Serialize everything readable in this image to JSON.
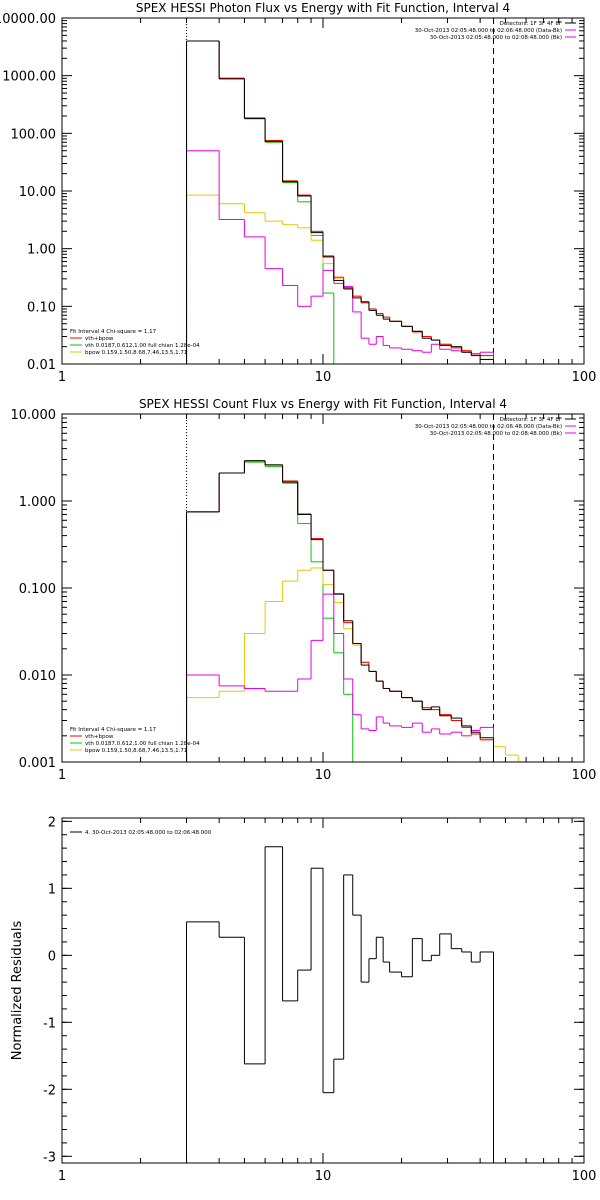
{
  "colors": {
    "data": "#000000",
    "total_model": "#ff0000",
    "vth": "#00c800",
    "bpow": "#e6c800",
    "background": "#e600e6",
    "axis": "#000000"
  },
  "chart_data": [
    {
      "id": "photon",
      "type": "line",
      "step": true,
      "title": "SPEX HESSI Photon Flux vs Energy with Fit Function, Interval 4",
      "xlabel": "",
      "ylabel": "",
      "xscale": "log",
      "yscale": "log",
      "xlim": [
        1,
        100
      ],
      "ylim": [
        0.01,
        10000
      ],
      "x_ticks": [
        1,
        10,
        100
      ],
      "x_tick_labels": [
        "1",
        "10",
        "100"
      ],
      "y_ticks": [
        0.01,
        0.1,
        1,
        10,
        100,
        1000,
        10000
      ],
      "y_tick_labels": [
        "0.01",
        "0.10",
        "1.00",
        "10.00",
        "100.00",
        "1000.00",
        "10000.00"
      ],
      "grid": false,
      "legend_right": {
        "placement": "top-right",
        "lines": [
          "Detectors: 1F 3F 4F 8F",
          "30-Oct-2013 02:05:48.000 to 02:06:48.000 (Data-Bk)",
          "30-Oct-2013 02:05:48.000 to 02:08:48.000 (Bk)"
        ],
        "series": [
          "data",
          "background",
          "background"
        ]
      },
      "legend_left": {
        "placement": "bottom-left",
        "lines": [
          "Fit Interval 4   Chi-square = 1.17",
          "vth+bpow",
          "vth 0.0187,0.612,1.00  full chian 1.28e-04",
          "bpow 0.159,1.50,8.68,7.46,13.5,1.71"
        ],
        "series": [
          "",
          "total_model",
          "vth",
          "bpow"
        ]
      },
      "vlines": [
        {
          "x": 3.0,
          "style": "dotted"
        },
        {
          "x": 45.0,
          "style": "dashed"
        }
      ],
      "bin_edges": [
        3.0,
        4.0,
        5.0,
        6.0,
        7.0,
        8.0,
        9.0,
        10.0,
        11.0,
        12.0,
        13.0,
        14.0,
        15.0,
        16.0,
        17.0,
        18.0,
        20.0,
        22.0,
        24.0,
        26.0,
        28.0,
        31.0,
        34.0,
        37.0,
        40.0,
        45.0
      ],
      "series": [
        {
          "key": "vth",
          "values": [
            4000,
            900,
            180,
            70,
            14,
            6.5,
            1.7,
            0.17,
            0.009,
            0,
            0,
            0,
            0,
            0,
            0,
            0,
            0,
            0,
            0,
            0,
            0,
            0,
            0,
            0,
            0
          ]
        },
        {
          "key": "bpow",
          "values": [
            8.5,
            6.0,
            4.2,
            3.0,
            2.6,
            2.3,
            1.4,
            0.55,
            0.3,
            0.21,
            0.15,
            0.115,
            0.09,
            0.075,
            0.065,
            0.055,
            0.045,
            0.036,
            0.03,
            0.026,
            0.022,
            0.019,
            0.017,
            0.015,
            0.014
          ]
        },
        {
          "key": "background",
          "values": [
            50,
            3.2,
            1.6,
            0.45,
            0.23,
            0.1,
            0.15,
            0.42,
            0.25,
            0.22,
            0.08,
            0.028,
            0.022,
            0.03,
            0.021,
            0.019,
            0.018,
            0.017,
            0.016,
            0.022,
            0.018,
            0.017,
            0.016,
            0.015,
            0.016
          ]
        },
        {
          "key": "total_model",
          "values": [
            4000,
            900,
            185,
            75,
            15,
            8.5,
            2.0,
            0.75,
            0.32,
            0.21,
            0.15,
            0.115,
            0.09,
            0.075,
            0.065,
            0.055,
            0.045,
            0.036,
            0.03,
            0.026,
            0.022,
            0.019,
            0.017,
            0.015,
            0.014
          ]
        },
        {
          "key": "data",
          "values": [
            4000,
            880,
            180,
            72,
            14.5,
            8.2,
            1.9,
            0.72,
            0.28,
            0.2,
            0.14,
            0.12,
            0.085,
            0.07,
            0.06,
            0.055,
            0.045,
            0.037,
            0.028,
            0.026,
            0.021,
            0.02,
            0.016,
            0.014,
            0.012
          ]
        }
      ]
    },
    {
      "id": "count",
      "type": "line",
      "step": true,
      "title": "SPEX HESSI Count Flux vs Energy with Fit Function, Interval 4",
      "xlabel": "",
      "ylabel": "",
      "xscale": "log",
      "yscale": "log",
      "xlim": [
        1,
        100
      ],
      "ylim": [
        0.001,
        10
      ],
      "x_ticks": [
        1,
        10,
        100
      ],
      "x_tick_labels": [
        "1",
        "10",
        "100"
      ],
      "y_ticks": [
        0.001,
        0.01,
        0.1,
        1,
        10
      ],
      "y_tick_labels": [
        "0.001",
        "0.010",
        "0.100",
        "1.000",
        "10.000"
      ],
      "grid": false,
      "legend_right": {
        "placement": "top-right",
        "lines": [
          "Detectors: 1F 3F 4F 8F",
          "30-Oct-2013 02:05:48.000 to 02:06:48.000 (Data-Bk)",
          "30-Oct-2013 02:05:48.000 to 02:08:48.000 (Bk)"
        ],
        "series": [
          "data",
          "background",
          "background"
        ]
      },
      "legend_left": {
        "placement": "bottom-left",
        "lines": [
          "Fit Interval 4   Chi-square = 1.17",
          "vth+bpow",
          "vth 0.0187,0.612,1.00  full chian 1.28e-04",
          "bpow 0.159,1.50,8.68,7.46,13.5,1.71"
        ],
        "series": [
          "",
          "total_model",
          "vth",
          "bpow"
        ]
      },
      "vlines": [
        {
          "x": 3.0,
          "style": "dotted"
        },
        {
          "x": 45.0,
          "style": "dashed"
        }
      ],
      "bin_edges": [
        3.0,
        4.0,
        5.0,
        6.0,
        7.0,
        8.0,
        9.0,
        10.0,
        11.0,
        12.0,
        13.0,
        14.0,
        15.0,
        16.0,
        17.0,
        18.0,
        20.0,
        22.0,
        24.0,
        26.0,
        28.0,
        31.0,
        34.0,
        37.0,
        40.0,
        45.0,
        50.0,
        56.0,
        63.0,
        70.0
      ],
      "series": [
        {
          "key": "vth",
          "values": [
            0.75,
            2.1,
            2.8,
            2.5,
            1.6,
            0.55,
            0.2,
            0.045,
            0.018,
            0.006,
            0.001,
            0,
            0,
            0,
            0,
            0,
            0,
            0,
            0,
            0,
            0,
            0,
            0,
            0,
            0,
            0,
            0,
            0,
            0
          ]
        },
        {
          "key": "bpow",
          "values": [
            0.0055,
            0.0065,
            0.03,
            0.07,
            0.12,
            0.16,
            0.17,
            0.11,
            0.068,
            0.034,
            0.022,
            0.014,
            0.011,
            0.0085,
            0.007,
            0.0065,
            0.0055,
            0.005,
            0.0042,
            0.004,
            0.0035,
            0.003,
            0.0025,
            0.0021,
            0.0018,
            0.0015,
            0.0012,
            0.001,
            0.0008
          ]
        },
        {
          "key": "background",
          "values": [
            0.01,
            0.0075,
            0.007,
            0.0065,
            0.0065,
            0.009,
            0.025,
            0.085,
            0.03,
            0.009,
            0.0035,
            0.0024,
            0.0023,
            0.0033,
            0.0028,
            0.0026,
            0.0025,
            0.0028,
            0.0022,
            0.0024,
            0.0021,
            0.0022,
            0.002,
            0.0023,
            0.0025,
            0,
            0,
            0,
            0
          ]
        },
        {
          "key": "total_model",
          "values": [
            0.75,
            2.1,
            2.9,
            2.6,
            1.7,
            0.71,
            0.37,
            0.16,
            0.086,
            0.04,
            0.023,
            0.014,
            0.011,
            0.0085,
            0.007,
            0.0065,
            0.0055,
            0.005,
            0.0042,
            0.004,
            0.0035,
            0.003,
            0.0025,
            0.0021,
            0.0018,
            0,
            0,
            0,
            0
          ]
        },
        {
          "key": "data",
          "values": [
            0.75,
            2.1,
            2.9,
            2.6,
            1.65,
            0.7,
            0.36,
            0.16,
            0.085,
            0.042,
            0.023,
            0.013,
            0.011,
            0.0085,
            0.007,
            0.0065,
            0.0055,
            0.005,
            0.004,
            0.0043,
            0.0034,
            0.0032,
            0.0026,
            0.0022,
            0.0019,
            0,
            0,
            0,
            0
          ]
        }
      ]
    },
    {
      "id": "residuals",
      "type": "line",
      "step": true,
      "title": "",
      "xlabel": "",
      "ylabel": "Normalized Residuals",
      "xscale": "log",
      "yscale": "linear",
      "xlim": [
        1,
        100
      ],
      "ylim": [
        -3.1,
        2.05
      ],
      "x_ticks": [
        1,
        10,
        100
      ],
      "x_tick_labels": [
        "1",
        "10",
        "100"
      ],
      "y_ticks": [
        -3,
        -2,
        -1,
        0,
        1,
        2
      ],
      "y_tick_labels": [
        "-3",
        "-2",
        "-1",
        "0",
        "1",
        "2"
      ],
      "grid": false,
      "legend_left": {
        "placement": "top-left",
        "lines": [
          "4. 30-Oct-2013 02:05:48.000 to 02:06:48.000"
        ],
        "series": [
          "data"
        ]
      },
      "bin_edges": [
        3.0,
        4.0,
        5.0,
        6.0,
        7.0,
        8.0,
        9.0,
        10.0,
        11.0,
        12.0,
        13.0,
        14.0,
        15.0,
        16.0,
        17.0,
        18.0,
        20.0,
        22.0,
        24.0,
        26.0,
        28.0,
        31.0,
        34.0,
        37.0,
        40.0,
        45.0
      ],
      "series": [
        {
          "key": "data",
          "values": [
            0.5,
            0.27,
            -1.62,
            1.62,
            -0.68,
            -0.22,
            1.3,
            -2.05,
            -1.55,
            1.2,
            0.6,
            -0.4,
            -0.05,
            0.27,
            -0.1,
            -0.25,
            -0.32,
            0.25,
            -0.08,
            0.0,
            0.32,
            0.1,
            0.05,
            -0.1,
            0.05
          ]
        }
      ]
    }
  ]
}
